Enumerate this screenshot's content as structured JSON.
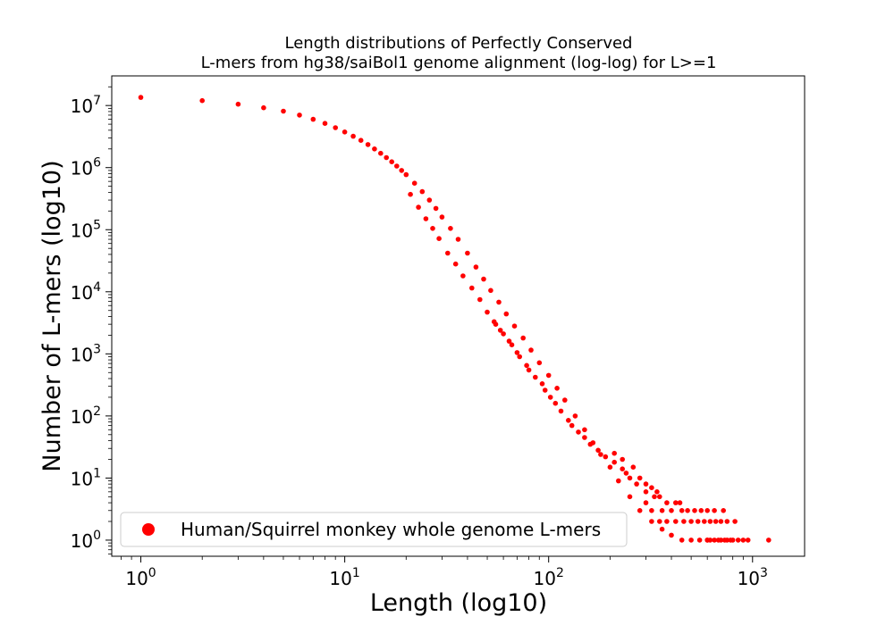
{
  "chart_data": {
    "type": "scatter",
    "title_line1": "Length distributions of Perfectly Conserved",
    "title_line2": "L-mers from hg38/saiBol1 genome alignment (log-log) for L>=1",
    "xlabel": "Length (log10)",
    "ylabel": "Number of L-mers (log10)",
    "xscale": "log",
    "yscale": "log",
    "xlim": [
      0.72,
      1800
    ],
    "ylim": [
      0.55,
      30000000
    ],
    "xticks": [
      {
        "value": 1,
        "base": "10",
        "exp": "0"
      },
      {
        "value": 10,
        "base": "10",
        "exp": "1"
      },
      {
        "value": 100,
        "base": "10",
        "exp": "2"
      },
      {
        "value": 1000,
        "base": "10",
        "exp": "3"
      }
    ],
    "yticks": [
      {
        "value": 1,
        "base": "10",
        "exp": "0"
      },
      {
        "value": 10,
        "base": "10",
        "exp": "1"
      },
      {
        "value": 100,
        "base": "10",
        "exp": "2"
      },
      {
        "value": 1000,
        "base": "10",
        "exp": "3"
      },
      {
        "value": 10000,
        "base": "10",
        "exp": "4"
      },
      {
        "value": 100000,
        "base": "10",
        "exp": "5"
      },
      {
        "value": 1000000,
        "base": "10",
        "exp": "6"
      },
      {
        "value": 10000000,
        "base": "10",
        "exp": "7"
      }
    ],
    "grid": false,
    "legend_position": "lower-left",
    "series": [
      {
        "name": "Human/Squirrel monkey whole genome L-mers",
        "color": "#ff0000",
        "points": [
          [
            1,
            13500000
          ],
          [
            2,
            12000000
          ],
          [
            3,
            10500000
          ],
          [
            4,
            9200000
          ],
          [
            5,
            8100000
          ],
          [
            6,
            7000000
          ],
          [
            7,
            6000000
          ],
          [
            8,
            5150000
          ],
          [
            9,
            4400000
          ],
          [
            10,
            3750000
          ],
          [
            11,
            3200000
          ],
          [
            12,
            2750000
          ],
          [
            13,
            2350000
          ],
          [
            14,
            2000000
          ],
          [
            15,
            1700000
          ],
          [
            16,
            1450000
          ],
          [
            17,
            1240000
          ],
          [
            18,
            1060000
          ],
          [
            19,
            900000
          ],
          [
            20,
            770000
          ],
          [
            22,
            560000
          ],
          [
            24,
            410000
          ],
          [
            26,
            300000
          ],
          [
            28,
            220000
          ],
          [
            30,
            160000
          ],
          [
            33,
            105000
          ],
          [
            36,
            70000
          ],
          [
            40,
            42000
          ],
          [
            44,
            25000
          ],
          [
            48,
            16000
          ],
          [
            52,
            10500
          ],
          [
            57,
            6800
          ],
          [
            62,
            4400
          ],
          [
            68,
            2800
          ],
          [
            75,
            1800
          ],
          [
            82,
            1150
          ],
          [
            90,
            720
          ],
          [
            100,
            450
          ],
          [
            110,
            280
          ],
          [
            120,
            180
          ],
          [
            135,
            100
          ],
          [
            150,
            60
          ],
          [
            165,
            37
          ],
          [
            180,
            24
          ],
          [
            200,
            15
          ],
          [
            220,
            9
          ],
          [
            250,
            5
          ],
          [
            280,
            3
          ],
          [
            320,
            2
          ],
          [
            360,
            1.5
          ],
          [
            400,
            1.2
          ],
          [
            450,
            1
          ],
          [
            500,
            1
          ],
          [
            550,
            1
          ],
          [
            600,
            1
          ],
          [
            650,
            1
          ],
          [
            700,
            1
          ],
          [
            750,
            1
          ],
          [
            800,
            1
          ],
          [
            950,
            1
          ],
          [
            1200,
            1
          ],
          [
            320,
            3
          ],
          [
            350,
            2
          ],
          [
            380,
            2
          ],
          [
            420,
            2
          ],
          [
            460,
            2
          ],
          [
            500,
            2
          ],
          [
            540,
            2
          ],
          [
            580,
            2
          ],
          [
            620,
            2
          ],
          [
            660,
            2
          ],
          [
            700,
            2
          ],
          [
            750,
            2
          ],
          [
            820,
            2
          ],
          [
            360,
            3
          ],
          [
            400,
            3
          ],
          [
            450,
            3
          ],
          [
            300,
            4
          ],
          [
            330,
            5
          ],
          [
            300,
            6
          ],
          [
            270,
            8
          ],
          [
            250,
            10
          ],
          [
            240,
            12
          ],
          [
            230,
            14
          ],
          [
            210,
            18
          ],
          [
            190,
            22
          ],
          [
            175,
            28
          ],
          [
            160,
            35
          ],
          [
            150,
            45
          ],
          [
            140,
            55
          ],
          [
            130,
            70
          ],
          [
            125,
            85
          ],
          [
            115,
            120
          ],
          [
            108,
            160
          ],
          [
            102,
            200
          ],
          [
            96,
            260
          ],
          [
            93,
            330
          ],
          [
            86,
            420
          ],
          [
            80,
            550
          ],
          [
            78,
            650
          ],
          [
            72,
            900
          ],
          [
            70,
            1050
          ],
          [
            66,
            1400
          ],
          [
            64,
            1600
          ],
          [
            60,
            2100
          ],
          [
            58,
            2400
          ],
          [
            55,
            3000
          ],
          [
            54,
            3300
          ],
          [
            50,
            4700
          ],
          [
            46,
            7500
          ],
          [
            42,
            11500
          ],
          [
            38,
            18000
          ],
          [
            35,
            28000
          ],
          [
            32,
            42000
          ],
          [
            29,
            72000
          ],
          [
            27,
            105000
          ],
          [
            25,
            150000
          ],
          [
            23,
            230000
          ],
          [
            21,
            370000
          ],
          [
            210,
            25
          ],
          [
            230,
            20
          ],
          [
            260,
            15
          ],
          [
            280,
            10
          ],
          [
            300,
            8
          ],
          [
            320,
            7
          ],
          [
            340,
            6
          ],
          [
            350,
            5
          ],
          [
            380,
            4
          ],
          [
            420,
            4
          ],
          [
            440,
            4
          ],
          [
            480,
            3
          ],
          [
            520,
            3
          ],
          [
            560,
            3
          ],
          [
            600,
            3
          ],
          [
            650,
            3
          ],
          [
            720,
            3
          ],
          [
            600,
            1
          ],
          [
            620,
            1
          ],
          [
            680,
            1
          ],
          [
            730,
            1
          ],
          [
            780,
            1
          ],
          [
            850,
            1
          ],
          [
            900,
            1
          ]
        ]
      }
    ]
  }
}
